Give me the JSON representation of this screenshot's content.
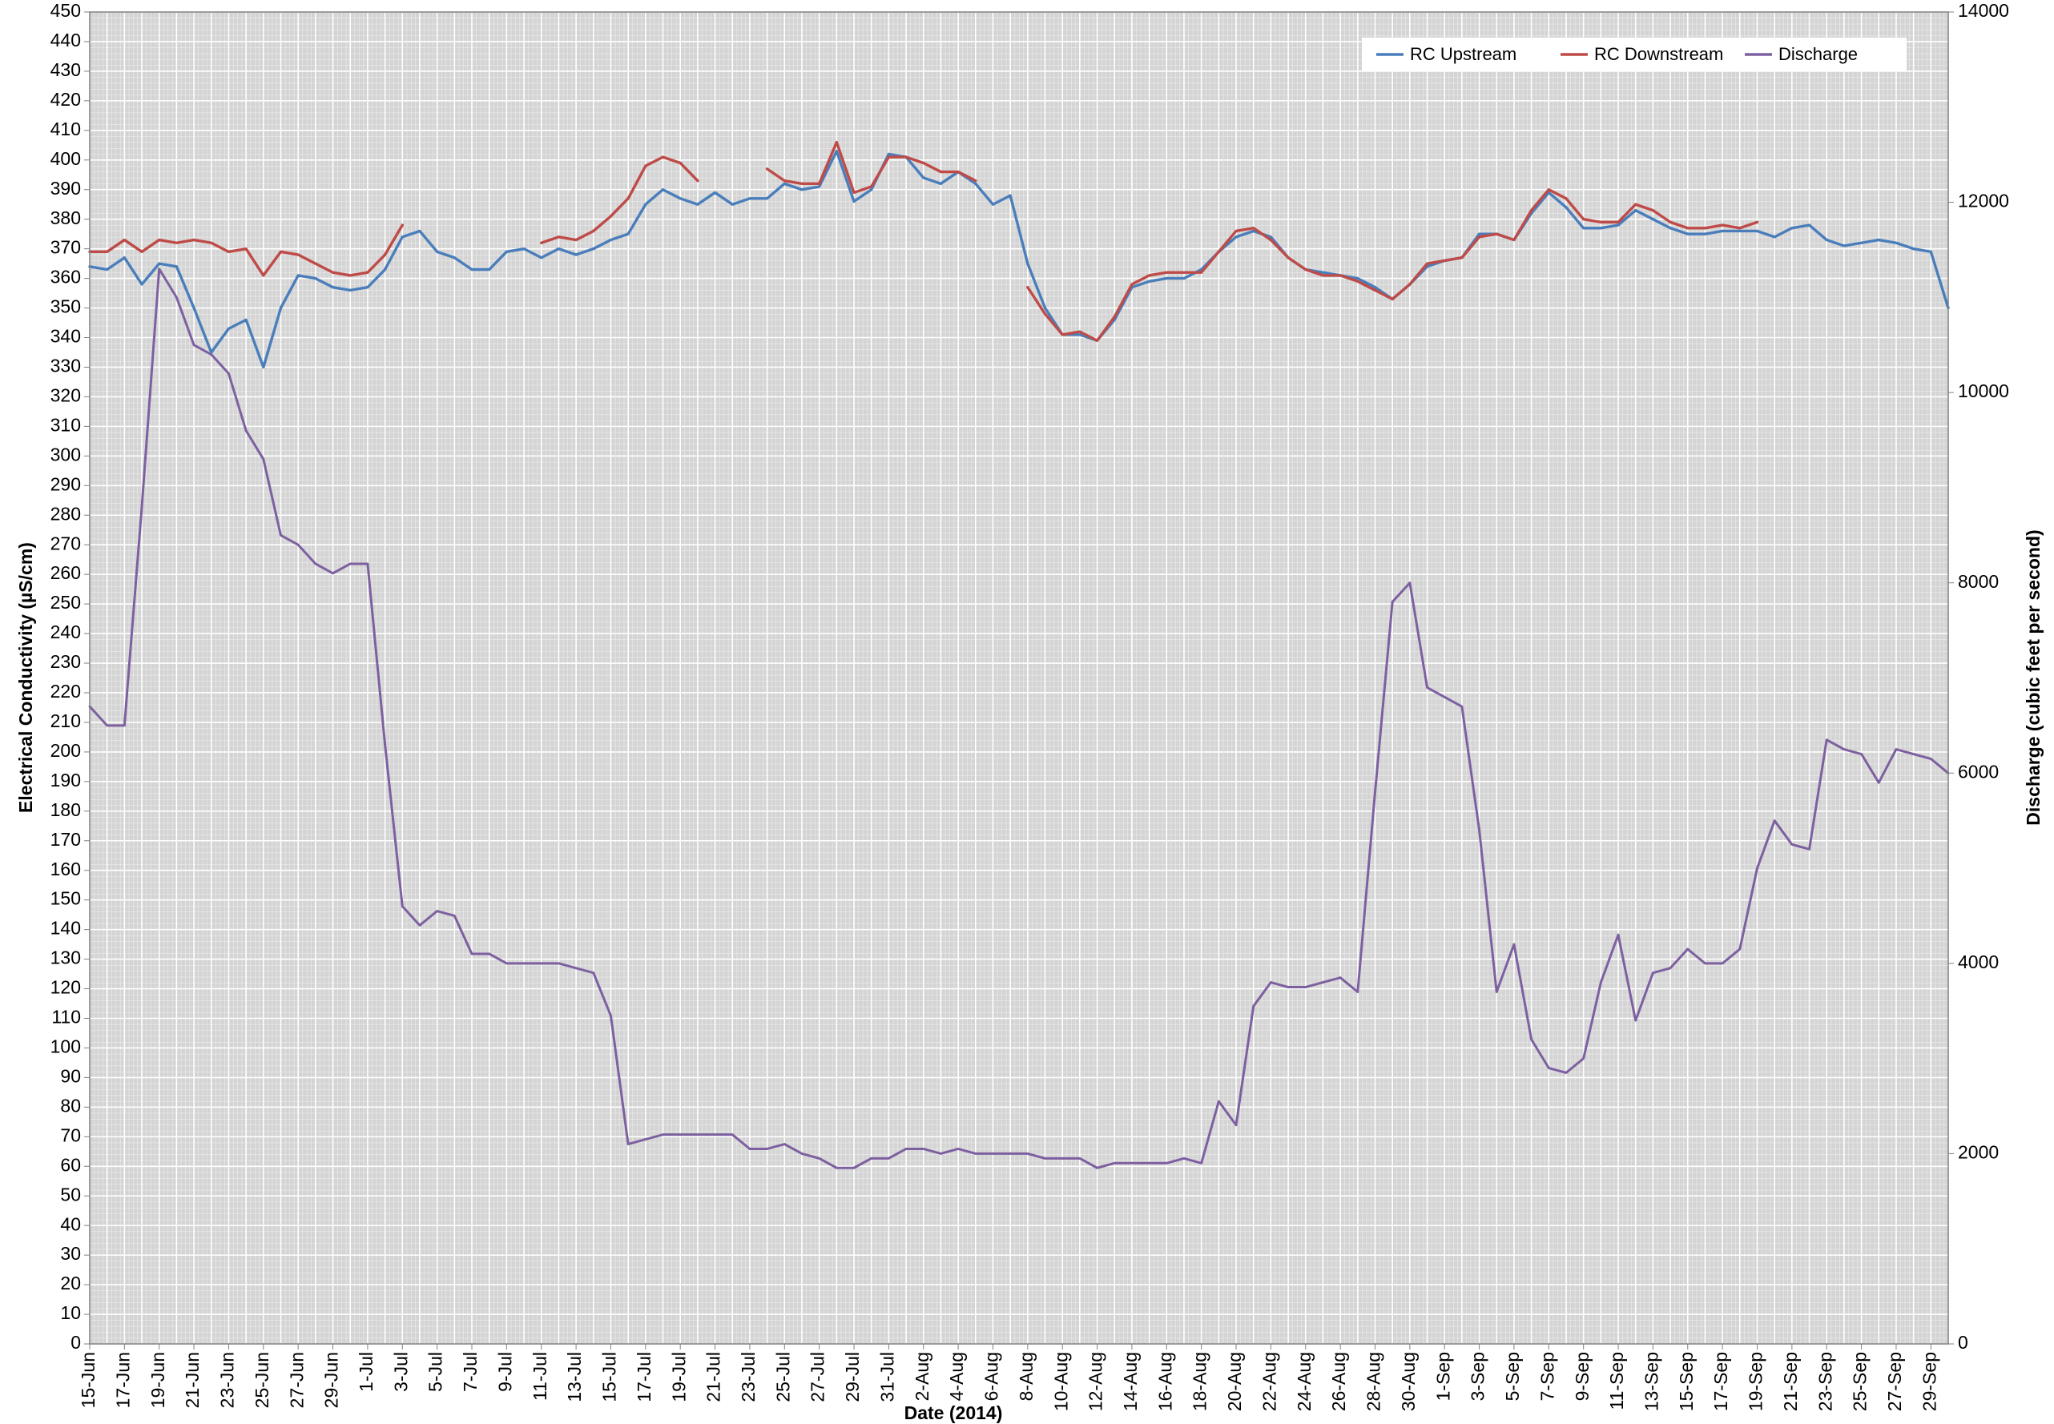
{
  "chart_data": {
    "type": "line",
    "y_label": "Electrical Conductivity (µS/cm)",
    "y2_label": "Discharge (cubic feet per second)",
    "x_label": "Date (2014)",
    "x": [
      "15-Jun",
      null,
      "17-Jun",
      null,
      "19-Jun",
      null,
      "21-Jun",
      null,
      "23-Jun",
      null,
      "25-Jun",
      null,
      "27-Jun",
      null,
      "29-Jun",
      null,
      "1-Jul",
      null,
      "3-Jul",
      null,
      "5-Jul",
      null,
      "7-Jul",
      null,
      "9-Jul",
      null,
      "11-Jul",
      null,
      "13-Jul",
      null,
      "15-Jul",
      null,
      "17-Jul",
      null,
      "19-Jul",
      null,
      "21-Jul",
      null,
      "23-Jul",
      null,
      "25-Jul",
      null,
      "27-Jul",
      null,
      "29-Jul",
      null,
      "31-Jul",
      null,
      "2-Aug",
      null,
      "4-Aug",
      null,
      "6-Aug",
      null,
      "8-Aug",
      null,
      "10-Aug",
      null,
      "12-Aug",
      null,
      "14-Aug",
      null,
      "16-Aug",
      null,
      "18-Aug",
      null,
      "20-Aug",
      null,
      "22-Aug",
      null,
      "24-Aug",
      null,
      "26-Aug",
      null,
      "28-Aug",
      null,
      "30-Aug",
      null,
      "1-Sep",
      null,
      "3-Sep",
      null,
      "5-Sep",
      null,
      "7-Sep",
      null,
      "9-Sep",
      null,
      "11-Sep",
      null,
      "13-Sep",
      null,
      "15-Sep",
      null,
      "17-Sep",
      null,
      "19-Sep",
      null,
      "21-Sep",
      null,
      "23-Sep",
      null,
      "25-Sep",
      null,
      "27-Sep",
      null,
      "29-Sep",
      null
    ],
    "ylim": [
      0,
      450
    ],
    "yticks": [
      0,
      10,
      20,
      30,
      40,
      50,
      60,
      70,
      80,
      90,
      100,
      110,
      120,
      130,
      140,
      150,
      160,
      170,
      180,
      190,
      200,
      210,
      220,
      230,
      240,
      250,
      260,
      270,
      280,
      290,
      300,
      310,
      320,
      330,
      340,
      350,
      360,
      370,
      380,
      390,
      400,
      410,
      420,
      430,
      440,
      450
    ],
    "y2lim": [
      0,
      14000
    ],
    "y2ticks": [
      0,
      2000,
      4000,
      6000,
      8000,
      10000,
      12000,
      14000
    ],
    "grid": true,
    "legend": "top-right",
    "series": [
      {
        "name": "RC Upstream",
        "color": "#4a7ebb",
        "values": [
          364,
          363,
          367,
          358,
          365,
          364,
          350,
          335,
          343,
          346,
          330,
          350,
          361,
          360,
          357,
          356,
          357,
          363,
          374,
          376,
          369,
          367,
          363,
          363,
          369,
          370,
          367,
          370,
          368,
          370,
          373,
          375,
          385,
          390,
          387,
          385,
          389,
          385,
          387,
          387,
          392,
          390,
          391,
          403,
          386,
          390,
          402,
          401,
          394,
          392,
          396,
          392,
          385,
          388,
          365,
          350,
          341,
          341,
          339,
          346,
          357,
          359,
          360,
          360,
          363,
          369,
          374,
          376,
          374,
          367,
          363,
          362,
          361,
          360,
          357,
          353,
          358,
          364,
          366,
          367,
          375,
          375,
          373,
          382,
          389,
          384,
          377,
          377,
          378,
          383,
          380,
          377,
          375,
          375,
          376,
          376,
          376,
          374,
          377,
          378,
          373,
          371,
          372,
          373,
          372,
          370,
          369,
          350
        ]
      },
      {
        "name": "RC Downstream",
        "color": "#be4b48",
        "values": [
          369,
          369,
          373,
          369,
          373,
          372,
          373,
          372,
          369,
          370,
          361,
          369,
          368,
          365,
          362,
          361,
          362,
          368,
          378,
          null,
          null,
          null,
          null,
          null,
          null,
          null,
          372,
          374,
          373,
          376,
          381,
          387,
          398,
          401,
          399,
          393,
          null,
          null,
          null,
          397,
          393,
          392,
          392,
          406,
          389,
          391,
          401,
          401,
          399,
          396,
          396,
          393,
          null,
          null,
          357,
          348,
          341,
          342,
          339,
          347,
          358,
          361,
          362,
          362,
          362,
          369,
          376,
          377,
          373,
          367,
          363,
          361,
          361,
          359,
          356,
          353,
          358,
          365,
          366,
          367,
          374,
          375,
          373,
          383,
          390,
          387,
          380,
          379,
          379,
          385,
          383,
          379,
          377,
          377,
          378,
          377,
          379,
          null,
          null,
          null,
          null,
          null,
          null,
          null,
          null,
          null,
          null,
          null
        ]
      },
      {
        "name": "Discharge",
        "color": "#7d60a0",
        "axis": "y2",
        "values": [
          6700,
          6500,
          6500,
          8800,
          11300,
          11000,
          10500,
          10400,
          10200,
          9600,
          9300,
          8500,
          8400,
          8200,
          8100,
          8200,
          8200,
          6300,
          4600,
          4400,
          4550,
          4500,
          4100,
          4100,
          4000,
          4000,
          4000,
          4000,
          3950,
          3900,
          3450,
          2100,
          2150,
          2200,
          2200,
          2200,
          2200,
          2200,
          2050,
          2050,
          2100,
          2000,
          1950,
          1850,
          1850,
          1950,
          1950,
          2050,
          2050,
          2000,
          2050,
          2000,
          2000,
          2000,
          2000,
          1950,
          1950,
          1950,
          1850,
          1900,
          1900,
          1900,
          1900,
          1950,
          1900,
          2550,
          2300,
          3550,
          3800,
          3750,
          3750,
          3800,
          3850,
          3700,
          5800,
          7800,
          8000,
          6900,
          6800,
          6700,
          5400,
          3700,
          4200,
          3200,
          2900,
          2850,
          3000,
          3800,
          4300,
          3400,
          3900,
          3950,
          4150,
          4000,
          4000,
          4150,
          5000,
          5500,
          5250,
          5200,
          6350,
          6250,
          6200,
          5900,
          6250,
          6200,
          6150,
          6000
        ]
      }
    ]
  }
}
